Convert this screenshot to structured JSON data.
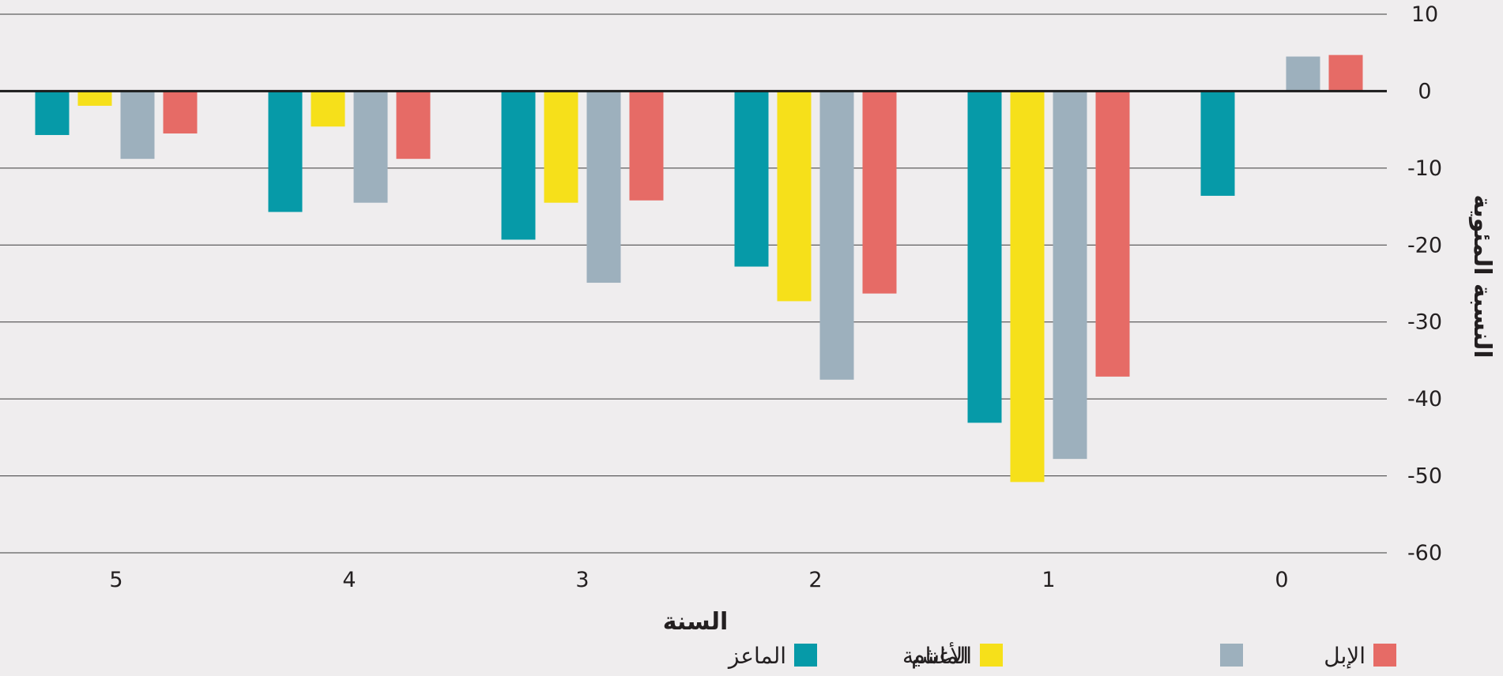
{
  "chart_data": {
    "type": "bar",
    "categories": [
      "0",
      "1",
      "2",
      "3",
      "4",
      "5"
    ],
    "series": [
      {
        "name": "الإبل",
        "color": "#e66b66",
        "values": [
          4.7,
          -37.1,
          -26.3,
          -14.2,
          -8.8,
          -5.5
        ]
      },
      {
        "name": "",
        "color": "#9db0bd",
        "values": [
          4.5,
          -47.8,
          -37.5,
          -24.9,
          -14.5,
          -8.8
        ]
      },
      {
        "name": "الماشية",
        "color": "#f6e01a",
        "values": [
          null,
          -50.8,
          -27.3,
          -14.5,
          -4.6,
          -1.9
        ]
      },
      {
        "name": "الماعز",
        "color": "#069aa8",
        "values": [
          -13.6,
          -43.1,
          -22.8,
          -19.3,
          -15.7,
          -5.7
        ]
      }
    ],
    "legend": [
      {
        "label": "الإبل",
        "color": "#e66b66"
      },
      {
        "label": "",
        "color": "#9db0bd"
      },
      {
        "label": "الماشية",
        "color": "#f6e01a"
      },
      {
        "label": "الماعز",
        "color": "#069aa8"
      },
      {
        "label": "الأغنام",
        "color": ""
      }
    ],
    "yticks": [
      "10",
      "0",
      "-10",
      "-20",
      "-30",
      "-40",
      "-50",
      "-60"
    ],
    "ylim": [
      -60,
      10
    ],
    "xlabel": "السنة",
    "ylabel": "النسبة المئوية",
    "grid": true,
    "legend_position": "bottom-right"
  }
}
